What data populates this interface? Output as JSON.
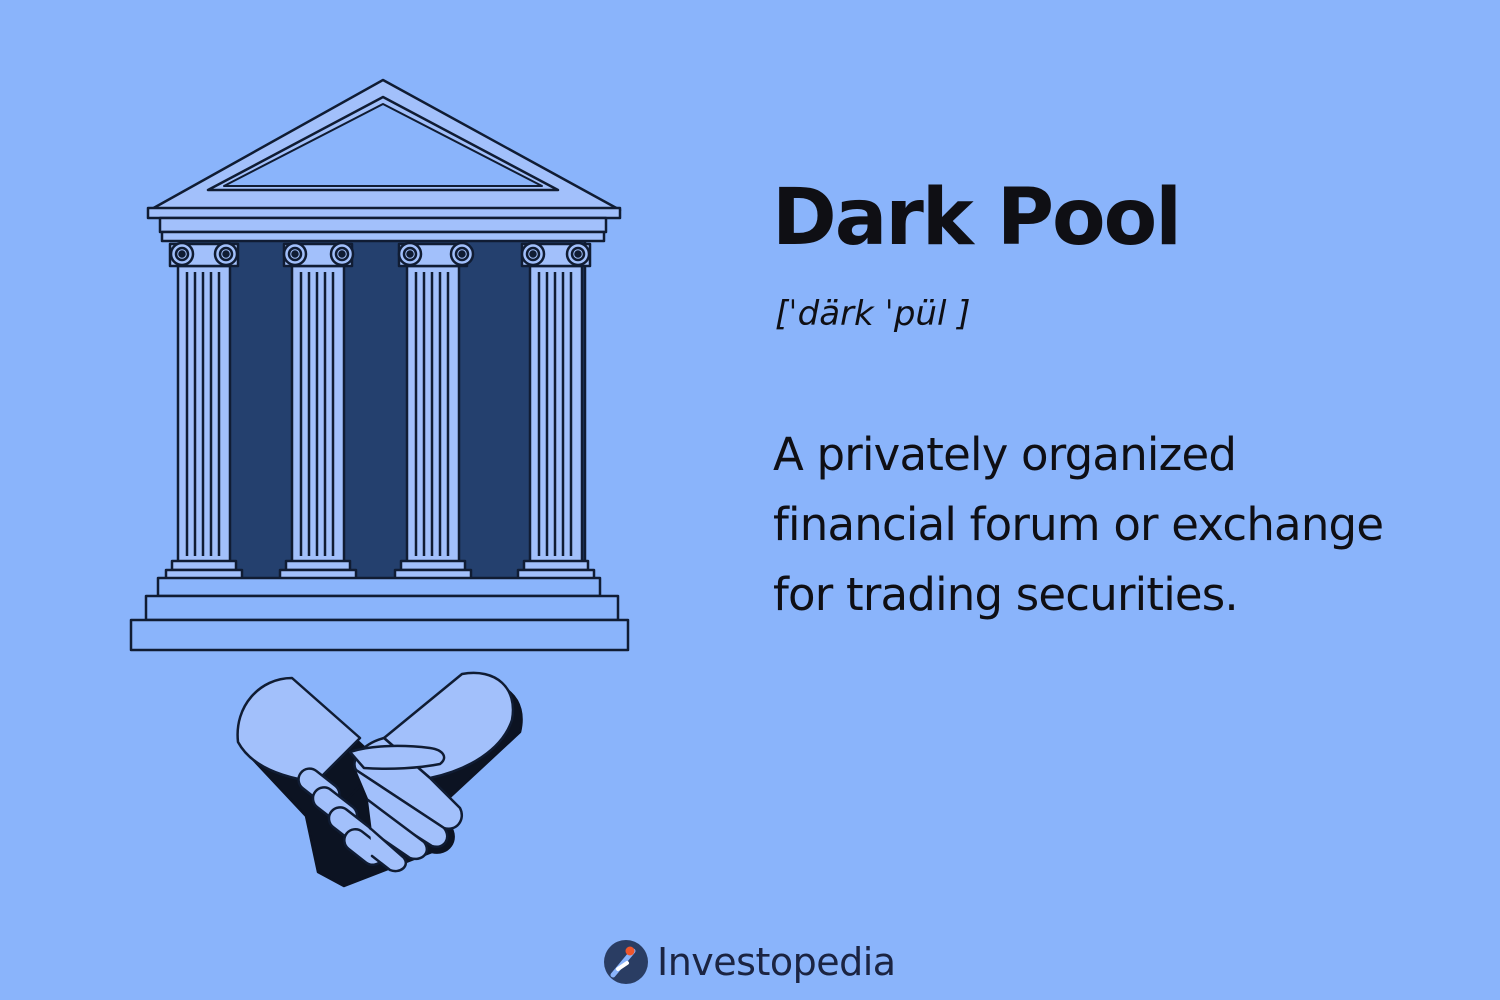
{
  "colors": {
    "background": "#8ab4fb",
    "column_fill": "#a2c0fb",
    "shadow_fill": "#24406e",
    "outline": "#101c33",
    "text": "#0f0f14",
    "brand_text": "#1b2442",
    "logo_circle": "#2a3d63",
    "logo_accent": "#f0562b"
  },
  "illustration": {
    "building_icon": "bank-building-icon",
    "handshake_icon": "handshake-icon"
  },
  "card": {
    "term": "Dark Pool",
    "pronunciation": "[ˈdärk ˈpül ]",
    "definition_lines": [
      "A privately organized",
      "financial forum or exchange",
      "for trading securities."
    ]
  },
  "brand": {
    "name": "Investopedia",
    "logo_icon": "investopedia-logo-icon"
  }
}
